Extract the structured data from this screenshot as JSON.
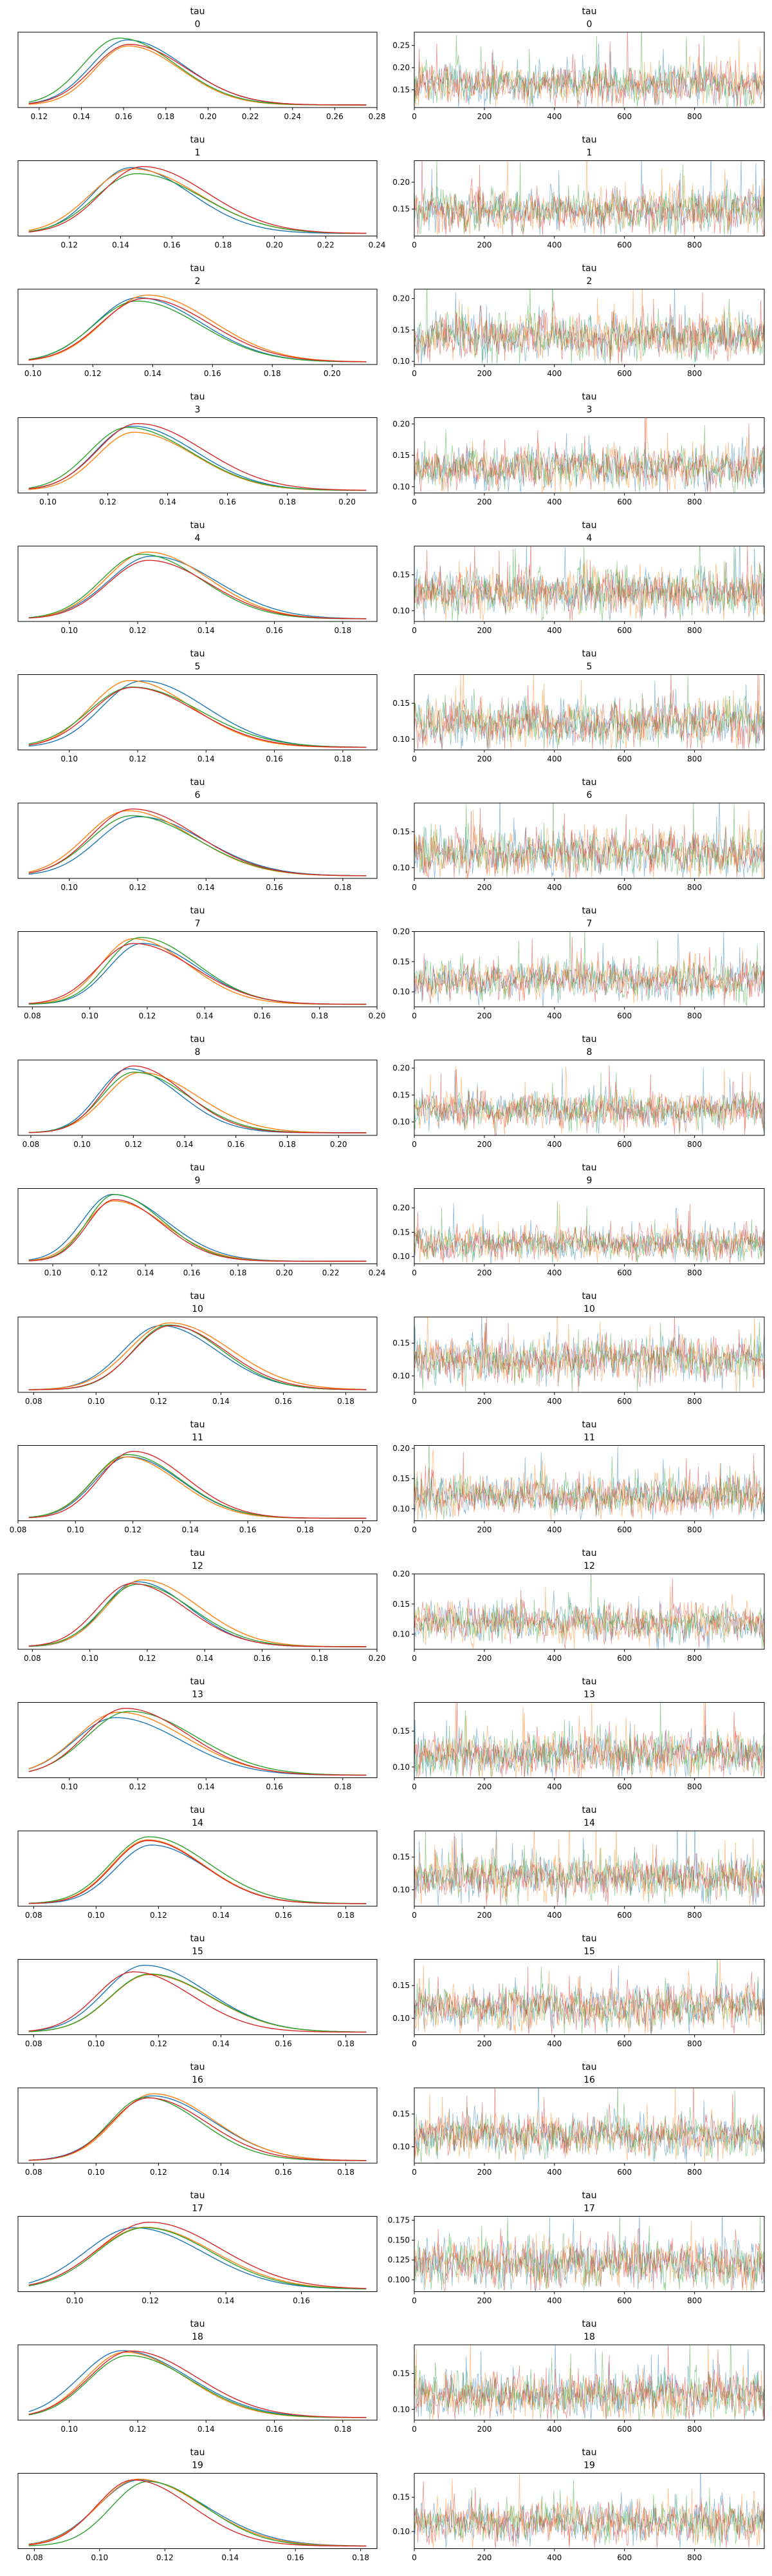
{
  "figure": {
    "variable": "tau",
    "colors": [
      "#1f77b4",
      "#ff7f0e",
      "#2ca02c",
      "#d62728"
    ],
    "trace_alpha": 0.5
  },
  "chart_data": [
    {
      "type": "line",
      "panel": "density",
      "title": "tau",
      "index": "0",
      "xlim": [
        0.11,
        0.28
      ],
      "xticks": [
        0.12,
        0.14,
        0.16,
        0.18,
        0.2,
        0.22,
        0.24,
        0.26,
        0.28
      ],
      "peak": 0.16,
      "sd": 0.019,
      "skew": 0.35
    },
    {
      "type": "line",
      "panel": "trace",
      "title": "tau",
      "index": "0",
      "xlim": [
        0,
        999
      ],
      "xticks": [
        0,
        200,
        400,
        600,
        800
      ],
      "ylim": [
        0.11,
        0.28
      ],
      "yticks": [
        0.15,
        0.2,
        0.25
      ],
      "mean": 0.162,
      "sd": 0.021
    },
    {
      "type": "line",
      "panel": "density",
      "title": "tau",
      "index": "1",
      "xlim": [
        0.1,
        0.24
      ],
      "xticks": [
        0.12,
        0.14,
        0.16,
        0.18,
        0.2,
        0.22,
        0.24
      ],
      "peak": 0.147,
      "sd": 0.018,
      "skew": 0.35
    },
    {
      "type": "line",
      "panel": "trace",
      "title": "tau",
      "index": "1",
      "xlim": [
        0,
        999
      ],
      "xticks": [
        0,
        200,
        400,
        600,
        800
      ],
      "ylim": [
        0.1,
        0.24
      ],
      "yticks": [
        0.15,
        0.2
      ],
      "mean": 0.148,
      "sd": 0.019
    },
    {
      "type": "line",
      "panel": "density",
      "title": "tau",
      "index": "2",
      "xlim": [
        0.095,
        0.215
      ],
      "xticks": [
        0.1,
        0.12,
        0.14,
        0.16,
        0.18,
        0.2
      ],
      "peak": 0.137,
      "sd": 0.016,
      "skew": 0.3
    },
    {
      "type": "line",
      "panel": "trace",
      "title": "tau",
      "index": "2",
      "xlim": [
        0,
        999
      ],
      "xticks": [
        0,
        200,
        400,
        600,
        800
      ],
      "ylim": [
        0.095,
        0.215
      ],
      "yticks": [
        0.1,
        0.15,
        0.2
      ],
      "mean": 0.139,
      "sd": 0.017
    },
    {
      "type": "line",
      "panel": "density",
      "title": "tau",
      "index": "3",
      "xlim": [
        0.09,
        0.21
      ],
      "xticks": [
        0.1,
        0.12,
        0.14,
        0.16,
        0.18,
        0.2
      ],
      "peak": 0.128,
      "sd": 0.015,
      "skew": 0.4
    },
    {
      "type": "line",
      "panel": "trace",
      "title": "tau",
      "index": "3",
      "xlim": [
        0,
        999
      ],
      "xticks": [
        0,
        200,
        400,
        600,
        800
      ],
      "ylim": [
        0.09,
        0.21
      ],
      "yticks": [
        0.1,
        0.15,
        0.2
      ],
      "mean": 0.13,
      "sd": 0.016
    },
    {
      "type": "line",
      "panel": "density",
      "title": "tau",
      "index": "4",
      "xlim": [
        0.085,
        0.19
      ],
      "xticks": [
        0.1,
        0.12,
        0.14,
        0.16,
        0.18
      ],
      "peak": 0.123,
      "sd": 0.014,
      "skew": 0.3
    },
    {
      "type": "line",
      "panel": "trace",
      "title": "tau",
      "index": "4",
      "xlim": [
        0,
        999
      ],
      "xticks": [
        0,
        200,
        400,
        600,
        800
      ],
      "ylim": [
        0.085,
        0.19
      ],
      "yticks": [
        0.1,
        0.15
      ],
      "mean": 0.125,
      "sd": 0.015
    },
    {
      "type": "line",
      "panel": "density",
      "title": "tau",
      "index": "5",
      "xlim": [
        0.085,
        0.19
      ],
      "xticks": [
        0.1,
        0.12,
        0.14,
        0.16,
        0.18
      ],
      "peak": 0.12,
      "sd": 0.014,
      "skew": 0.35
    },
    {
      "type": "line",
      "panel": "trace",
      "title": "tau",
      "index": "5",
      "xlim": [
        0,
        999
      ],
      "xticks": [
        0,
        200,
        400,
        600,
        800
      ],
      "ylim": [
        0.085,
        0.19
      ],
      "yticks": [
        0.1,
        0.15
      ],
      "mean": 0.122,
      "sd": 0.015
    },
    {
      "type": "line",
      "panel": "density",
      "title": "tau",
      "index": "6",
      "xlim": [
        0.085,
        0.19
      ],
      "xticks": [
        0.1,
        0.12,
        0.14,
        0.16,
        0.18
      ],
      "peak": 0.118,
      "sd": 0.014,
      "skew": 0.35
    },
    {
      "type": "line",
      "panel": "trace",
      "title": "tau",
      "index": "6",
      "xlim": [
        0,
        999
      ],
      "xticks": [
        0,
        200,
        400,
        600,
        800
      ],
      "ylim": [
        0.085,
        0.19
      ],
      "yticks": [
        0.1,
        0.15
      ],
      "mean": 0.12,
      "sd": 0.015
    },
    {
      "type": "line",
      "panel": "density",
      "title": "tau",
      "index": "7",
      "xlim": [
        0.075,
        0.2
      ],
      "xticks": [
        0.08,
        0.1,
        0.12,
        0.14,
        0.16,
        0.18,
        0.2
      ],
      "peak": 0.118,
      "sd": 0.014,
      "skew": 0.4
    },
    {
      "type": "line",
      "panel": "trace",
      "title": "tau",
      "index": "7",
      "xlim": [
        0,
        999
      ],
      "xticks": [
        0,
        200,
        400,
        600,
        800
      ],
      "ylim": [
        0.075,
        0.2
      ],
      "yticks": [
        0.1,
        0.15,
        0.2
      ],
      "mean": 0.12,
      "sd": 0.015
    },
    {
      "type": "line",
      "panel": "density",
      "title": "tau",
      "index": "8",
      "xlim": [
        0.075,
        0.215
      ],
      "xticks": [
        0.08,
        0.1,
        0.12,
        0.14,
        0.16,
        0.18,
        0.2
      ],
      "peak": 0.121,
      "sd": 0.015,
      "skew": 0.4
    },
    {
      "type": "line",
      "panel": "trace",
      "title": "tau",
      "index": "8",
      "xlim": [
        0,
        999
      ],
      "xticks": [
        0,
        200,
        400,
        600,
        800
      ],
      "ylim": [
        0.075,
        0.215
      ],
      "yticks": [
        0.1,
        0.15,
        0.2
      ],
      "mean": 0.123,
      "sd": 0.016
    },
    {
      "type": "line",
      "panel": "density",
      "title": "tau",
      "index": "9",
      "xlim": [
        0.085,
        0.24
      ],
      "xticks": [
        0.1,
        0.12,
        0.14,
        0.16,
        0.18,
        0.2,
        0.22,
        0.24
      ],
      "peak": 0.124,
      "sd": 0.015,
      "skew": 0.45
    },
    {
      "type": "line",
      "panel": "trace",
      "title": "tau",
      "index": "9",
      "xlim": [
        0,
        999
      ],
      "xticks": [
        0,
        200,
        400,
        600,
        800
      ],
      "ylim": [
        0.085,
        0.24
      ],
      "yticks": [
        0.1,
        0.15,
        0.2
      ],
      "mean": 0.127,
      "sd": 0.016
    },
    {
      "type": "line",
      "panel": "density",
      "title": "tau",
      "index": "10",
      "xlim": [
        0.075,
        0.19
      ],
      "xticks": [
        0.08,
        0.1,
        0.12,
        0.14,
        0.16,
        0.18
      ],
      "peak": 0.123,
      "sd": 0.014,
      "skew": 0.3
    },
    {
      "type": "line",
      "panel": "trace",
      "title": "tau",
      "index": "10",
      "xlim": [
        0,
        999
      ],
      "xticks": [
        0,
        200,
        400,
        600,
        800
      ],
      "ylim": [
        0.075,
        0.19
      ],
      "yticks": [
        0.1,
        0.15
      ],
      "mean": 0.125,
      "sd": 0.015
    },
    {
      "type": "line",
      "panel": "density",
      "title": "tau",
      "index": "11",
      "xlim": [
        0.08,
        0.205
      ],
      "xticks": [
        0.08,
        0.1,
        0.12,
        0.14,
        0.16,
        0.18,
        0.2
      ],
      "peak": 0.12,
      "sd": 0.014,
      "skew": 0.35
    },
    {
      "type": "line",
      "panel": "trace",
      "title": "tau",
      "index": "11",
      "xlim": [
        0,
        999
      ],
      "xticks": [
        0,
        200,
        400,
        600,
        800
      ],
      "ylim": [
        0.08,
        0.205
      ],
      "yticks": [
        0.1,
        0.15,
        0.2
      ],
      "mean": 0.122,
      "sd": 0.015
    },
    {
      "type": "line",
      "panel": "density",
      "title": "tau",
      "index": "12",
      "xlim": [
        0.075,
        0.2
      ],
      "xticks": [
        0.08,
        0.1,
        0.12,
        0.14,
        0.16,
        0.18,
        0.2
      ],
      "peak": 0.117,
      "sd": 0.014,
      "skew": 0.35
    },
    {
      "type": "line",
      "panel": "trace",
      "title": "tau",
      "index": "12",
      "xlim": [
        0,
        999
      ],
      "xticks": [
        0,
        200,
        400,
        600,
        800
      ],
      "ylim": [
        0.075,
        0.2
      ],
      "yticks": [
        0.1,
        0.15,
        0.2
      ],
      "mean": 0.119,
      "sd": 0.015
    },
    {
      "type": "line",
      "panel": "density",
      "title": "tau",
      "index": "13",
      "xlim": [
        0.085,
        0.19
      ],
      "xticks": [
        0.1,
        0.12,
        0.14,
        0.16,
        0.18
      ],
      "peak": 0.116,
      "sd": 0.014,
      "skew": 0.35
    },
    {
      "type": "line",
      "panel": "trace",
      "title": "tau",
      "index": "13",
      "xlim": [
        0,
        999
      ],
      "xticks": [
        0,
        200,
        400,
        600,
        800
      ],
      "ylim": [
        0.085,
        0.19
      ],
      "yticks": [
        0.1,
        0.15
      ],
      "mean": 0.118,
      "sd": 0.015
    },
    {
      "type": "line",
      "panel": "density",
      "title": "tau",
      "index": "14",
      "xlim": [
        0.075,
        0.19
      ],
      "xticks": [
        0.08,
        0.1,
        0.12,
        0.14,
        0.16,
        0.18
      ],
      "peak": 0.117,
      "sd": 0.014,
      "skew": 0.35
    },
    {
      "type": "line",
      "panel": "trace",
      "title": "tau",
      "index": "14",
      "xlim": [
        0,
        999
      ],
      "xticks": [
        0,
        200,
        400,
        600,
        800
      ],
      "ylim": [
        0.075,
        0.19
      ],
      "yticks": [
        0.1,
        0.15
      ],
      "mean": 0.119,
      "sd": 0.015
    },
    {
      "type": "line",
      "panel": "density",
      "title": "tau",
      "index": "15",
      "xlim": [
        0.075,
        0.19
      ],
      "xticks": [
        0.08,
        0.1,
        0.12,
        0.14,
        0.16,
        0.18
      ],
      "peak": 0.115,
      "sd": 0.014,
      "skew": 0.35
    },
    {
      "type": "line",
      "panel": "trace",
      "title": "tau",
      "index": "15",
      "xlim": [
        0,
        999
      ],
      "xticks": [
        0,
        200,
        400,
        600,
        800
      ],
      "ylim": [
        0.075,
        0.19
      ],
      "yticks": [
        0.1,
        0.15
      ],
      "mean": 0.117,
      "sd": 0.015
    },
    {
      "type": "line",
      "panel": "density",
      "title": "tau",
      "index": "16",
      "xlim": [
        0.075,
        0.19
      ],
      "xticks": [
        0.08,
        0.1,
        0.12,
        0.14,
        0.16,
        0.18
      ],
      "peak": 0.116,
      "sd": 0.014,
      "skew": 0.35
    },
    {
      "type": "line",
      "panel": "trace",
      "title": "tau",
      "index": "16",
      "xlim": [
        0,
        999
      ],
      "xticks": [
        0,
        200,
        400,
        600,
        800
      ],
      "ylim": [
        0.075,
        0.19
      ],
      "yticks": [
        0.1,
        0.15
      ],
      "mean": 0.118,
      "sd": 0.015
    },
    {
      "type": "line",
      "panel": "density",
      "title": "tau",
      "index": "17",
      "xlim": [
        0.085,
        0.18
      ],
      "xticks": [
        0.1,
        0.12,
        0.14,
        0.16
      ],
      "peak": 0.118,
      "sd": 0.014,
      "skew": 0.25
    },
    {
      "type": "line",
      "panel": "trace",
      "title": "tau",
      "index": "17",
      "xlim": [
        0,
        999
      ],
      "xticks": [
        0,
        200,
        400,
        600,
        800
      ],
      "ylim": [
        0.085,
        0.18
      ],
      "yticks": [
        0.1,
        0.125,
        0.15,
        0.175
      ],
      "ytick_labels": [
        "0.100",
        "0.125",
        "0.150",
        "0.175"
      ],
      "mean": 0.12,
      "sd": 0.014
    },
    {
      "type": "line",
      "panel": "density",
      "title": "tau",
      "index": "18",
      "xlim": [
        0.085,
        0.19
      ],
      "xticks": [
        0.1,
        0.12,
        0.14,
        0.16,
        0.18
      ],
      "peak": 0.118,
      "sd": 0.014,
      "skew": 0.35
    },
    {
      "type": "line",
      "panel": "trace",
      "title": "tau",
      "index": "18",
      "xlim": [
        0,
        999
      ],
      "xticks": [
        0,
        200,
        400,
        600,
        800
      ],
      "ylim": [
        0.085,
        0.19
      ],
      "yticks": [
        0.1,
        0.15
      ],
      "mean": 0.12,
      "sd": 0.015
    },
    {
      "type": "line",
      "panel": "density",
      "title": "tau",
      "index": "19",
      "xlim": [
        0.075,
        0.185
      ],
      "xticks": [
        0.08,
        0.1,
        0.12,
        0.14,
        0.16,
        0.18
      ],
      "peak": 0.112,
      "sd": 0.014,
      "skew": 0.35
    },
    {
      "type": "line",
      "panel": "trace",
      "title": "tau",
      "index": "19",
      "xlim": [
        0,
        999
      ],
      "xticks": [
        0,
        200,
        400,
        600,
        800
      ],
      "ylim": [
        0.075,
        0.185
      ],
      "yticks": [
        0.1,
        0.15
      ],
      "mean": 0.114,
      "sd": 0.015
    }
  ]
}
